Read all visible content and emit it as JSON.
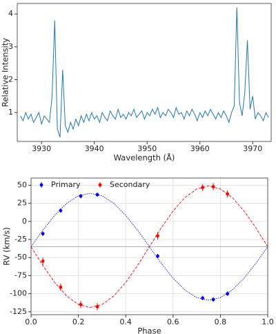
{
  "chart_data": [
    {
      "type": "line",
      "xlabel": "Wavelength (Å)",
      "ylabel": "Relative Intensity",
      "x": [
        3926,
        3926.5,
        3927,
        3927.5,
        3928,
        3928.5,
        3929,
        3929.5,
        3930,
        3930.5,
        3931,
        3931.5,
        3932,
        3932.5,
        3933,
        3933.5,
        3934,
        3934.5,
        3935,
        3935.5,
        3936,
        3936.5,
        3937,
        3937.5,
        3938,
        3938.5,
        3939,
        3939.5,
        3940,
        3940.5,
        3941,
        3941.5,
        3942,
        3942.5,
        3943,
        3943.5,
        3944,
        3944.5,
        3945,
        3945.5,
        3946,
        3946.5,
        3947,
        3947.5,
        3948,
        3948.5,
        3949,
        3949.5,
        3950,
        3950.5,
        3951,
        3951.5,
        3952,
        3952.5,
        3953,
        3953.5,
        3954,
        3954.5,
        3955,
        3955.5,
        3956,
        3956.5,
        3957,
        3957.5,
        3958,
        3958.5,
        3959,
        3959.5,
        3960,
        3960.5,
        3961,
        3961.5,
        3962,
        3962.5,
        3963,
        3963.5,
        3964,
        3964.5,
        3965,
        3965.5,
        3966,
        3966.5,
        3967,
        3967.5,
        3968,
        3968.5,
        3969,
        3969.5,
        3970,
        3970.5,
        3971,
        3971.5,
        3972,
        3972.5,
        3973
      ],
      "series": [
        {
          "color": "#1f77b4",
          "values": [
            0.9,
            0.75,
            1.0,
            0.8,
            0.95,
            0.7,
            0.85,
            1.0,
            0.65,
            0.9,
            0.8,
            0.7,
            1.5,
            3.8,
            0.5,
            0.25,
            2.3,
            0.6,
            0.4,
            0.7,
            0.5,
            0.8,
            0.6,
            0.9,
            0.7,
            0.95,
            0.75,
            1.0,
            0.8,
            0.9,
            0.7,
            1.0,
            0.85,
            0.75,
            1.05,
            0.9,
            0.8,
            1.1,
            0.85,
            0.95,
            0.8,
            1.0,
            0.9,
            1.1,
            0.85,
            0.95,
            1.05,
            0.8,
            1.0,
            0.9,
            1.1,
            0.95,
            1.15,
            0.85,
            1.0,
            0.9,
            1.1,
            1.0,
            0.85,
            1.15,
            0.95,
            1.0,
            0.8,
            1.05,
            0.9,
            1.1,
            0.95,
            0.75,
            1.0,
            0.85,
            1.05,
            0.9,
            1.1,
            0.95,
            0.8,
            1.0,
            0.85,
            1.05,
            0.9,
            0.7,
            1.0,
            1.2,
            4.2,
            1.3,
            0.9,
            1.6,
            3.2,
            1.1,
            1.5,
            0.8,
            1.0,
            0.9,
            0.75,
            1.0,
            0.85
          ]
        }
      ],
      "xlim": [
        3925.4,
        3973.5
      ],
      "xticks": [
        3930,
        3940,
        3950,
        3960,
        3970
      ],
      "ylim": [
        0.12,
        4.32
      ],
      "yticks": [
        1,
        2,
        3,
        4
      ],
      "grid": false
    },
    {
      "type": "errorbar",
      "xlabel": "Phase",
      "ylabel": "RV (km/s)",
      "series": [
        {
          "name": "Primary",
          "color": "#0000ff",
          "x": [
            0.05,
            0.125,
            0.21,
            0.28,
            0.535,
            0.725,
            0.77,
            0.83
          ],
          "values": [
            -17,
            15,
            35,
            37,
            -48,
            -106,
            -108,
            -100
          ],
          "errors": [
            3,
            3,
            3,
            3,
            3,
            3,
            3,
            3
          ]
        },
        {
          "name": "Secondary",
          "color": "#ff0000",
          "x": [
            0.05,
            0.125,
            0.21,
            0.28,
            0.535,
            0.725,
            0.77,
            0.83
          ],
          "values": [
            -55,
            -91,
            -115,
            -118,
            -20,
            47,
            48,
            38
          ],
          "errors": [
            5,
            5,
            5,
            5,
            5,
            5,
            5,
            5
          ]
        }
      ],
      "curves": [
        {
          "color": "#0000ff",
          "dash": "1.5,1.5",
          "x": [
            0,
            0.05,
            0.1,
            0.15,
            0.2,
            0.25,
            0.3,
            0.35,
            0.4,
            0.45,
            0.5,
            0.55,
            0.6,
            0.65,
            0.7,
            0.75,
            0.8,
            0.85,
            0.9,
            0.95,
            1
          ],
          "values": [
            -35,
            -12.1,
            8.5,
            24.9,
            35.4,
            39,
            35.4,
            24.9,
            8.5,
            -12.1,
            -35,
            -57.9,
            -78.5,
            -94.9,
            -105.4,
            -109,
            -105.4,
            -94.9,
            -78.5,
            -57.9,
            -35
          ]
        },
        {
          "color": "#ff0000",
          "dash": "4,2",
          "x": [
            0,
            0.05,
            0.1,
            0.15,
            0.2,
            0.25,
            0.3,
            0.35,
            0.4,
            0.45,
            0.5,
            0.55,
            0.6,
            0.65,
            0.7,
            0.75,
            0.8,
            0.85,
            0.9,
            0.95,
            1
          ],
          "values": [
            -35,
            -61,
            -84.4,
            -103,
            -114.9,
            -119,
            -114.9,
            -103,
            -84.4,
            -61,
            -35,
            -9,
            14.4,
            33,
            44.9,
            49,
            44.9,
            33,
            14.4,
            -9,
            -35
          ]
        }
      ],
      "reference_line": -35,
      "xlim": [
        0,
        1
      ],
      "xticks": [
        {
          "value": 0,
          "label": "0.0"
        },
        {
          "value": 0.2,
          "label": "0.2"
        },
        {
          "value": 0.4,
          "label": "0.4"
        },
        {
          "value": 0.6,
          "label": "0.6"
        },
        {
          "value": 0.8,
          "label": "0.8"
        },
        {
          "value": 1,
          "label": "1.0"
        }
      ],
      "ylim": [
        -129,
        60
      ],
      "yticks": [
        -125,
        -100,
        -75,
        -50,
        -25,
        0,
        25,
        50
      ],
      "grid": true,
      "legend": "upper left"
    }
  ]
}
